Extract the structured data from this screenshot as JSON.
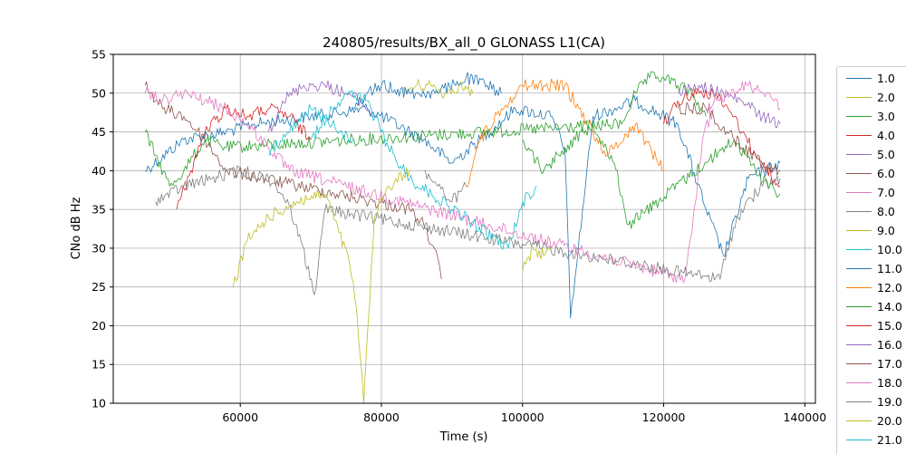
{
  "chart_data": {
    "type": "line",
    "title": "240805/results/BX_all_0 GLONASS L1(CA)",
    "xlabel": "Time (s)",
    "ylabel": "CNo dB Hz",
    "xlim": [
      42000,
      141500
    ],
    "ylim": [
      10,
      55
    ],
    "xticks": [
      60000,
      80000,
      100000,
      120000,
      140000
    ],
    "xtick_labels": [
      "60000",
      "80000",
      "100000",
      "120000",
      "140000"
    ],
    "yticks": [
      10,
      15,
      20,
      25,
      30,
      35,
      40,
      45,
      50,
      55
    ],
    "ytick_labels": [
      "10",
      "15",
      "20",
      "25",
      "30",
      "35",
      "40",
      "45",
      "50",
      "55"
    ],
    "grid": true,
    "legend_placement": "right-outside",
    "series": [
      {
        "name": "1.0",
        "color": "#1f77b4",
        "x": [
          46500,
          52000,
          58000,
          62000,
          70000,
          78000,
          86000,
          90000,
          94000,
          99000,
          104000,
          106000,
          106800,
          110000,
          116000,
          122000,
          126000,
          128500,
          132000,
          136500
        ],
        "y": [
          40,
          44,
          45,
          46,
          47,
          48,
          44,
          41,
          44,
          48,
          47,
          43,
          21,
          47,
          49,
          46,
          35,
          29,
          39,
          41
        ]
      },
      {
        "name": "2.0",
        "color": "#bcbd22",
        "x": [
          83000,
          85000,
          87000,
          89000,
          91000,
          93000
        ],
        "y": [
          50,
          51,
          51,
          50,
          51,
          50
        ]
      },
      {
        "name": "3.0",
        "color": "#2ca02c",
        "x": [
          46500,
          48000,
          50000,
          52000,
          55000,
          58000,
          114000,
          116000,
          118000,
          120000,
          122000,
          124000,
          126000
        ],
        "y": [
          45,
          42,
          38,
          40,
          44,
          43,
          46,
          50,
          52,
          52,
          51,
          50,
          47
        ]
      },
      {
        "name": "4.0",
        "color": "#d62728",
        "x": [
          51000,
          53000,
          55000,
          58000,
          61000,
          64000,
          67000,
          70000
        ],
        "y": [
          35,
          40,
          45,
          48,
          47,
          48,
          47,
          44
        ]
      },
      {
        "name": "5.0",
        "color": "#9467bd",
        "x": [
          64000,
          66000,
          69000,
          72000,
          75000,
          77000,
          79000
        ],
        "y": [
          45,
          49,
          51,
          51,
          50,
          49,
          47
        ]
      },
      {
        "name": "6.0",
        "color": "#8c564b",
        "x": [
          46500,
          49000,
          52000,
          55000,
          58000,
          84000,
          86000,
          87500,
          88500
        ],
        "y": [
          51,
          48,
          47,
          44,
          40,
          35,
          33,
          30,
          26
        ]
      },
      {
        "name": "7.0",
        "color": "#e377c2",
        "x": [
          46500,
          49000,
          52000,
          55000,
          58000,
          61000,
          64000,
          67000,
          123000,
          124000,
          125500,
          127000
        ],
        "y": [
          50,
          49,
          50,
          49,
          48,
          46,
          43,
          40,
          26,
          32,
          44,
          48
        ]
      },
      {
        "name": "8.0",
        "color": "#7f7f7f",
        "x": [
          48000,
          52000,
          56000,
          60000,
          64000,
          66000,
          68000,
          70500,
          72000,
          128000,
          129000,
          131000,
          134000,
          136500
        ],
        "y": [
          36,
          38,
          39,
          40,
          39,
          37,
          33,
          24,
          35,
          26,
          30,
          35,
          38,
          39
        ]
      },
      {
        "name": "9.0",
        "color": "#bcbd22",
        "x": [
          59000,
          61000,
          64000,
          68000,
          72000,
          74000,
          75500,
          76500,
          77500,
          79000,
          81000,
          84000
        ],
        "y": [
          25,
          31,
          34,
          36,
          37,
          32,
          28,
          22,
          10,
          34,
          38,
          40
        ]
      },
      {
        "name": "10.0",
        "color": "#17becf",
        "x": [
          70000,
          73000,
          75000,
          78000,
          81000,
          84000,
          98000,
          100000,
          102000
        ],
        "y": [
          44,
          48,
          50,
          49,
          43,
          39,
          30,
          36,
          38
        ]
      },
      {
        "name": "11.0",
        "color": "#1f77b4",
        "x": [
          76000,
          78000,
          80000,
          84000,
          88000,
          92000,
          95000,
          97000
        ],
        "y": [
          48,
          50,
          51,
          50,
          50,
          52,
          51,
          50
        ]
      },
      {
        "name": "12.0",
        "color": "#ff7f0e",
        "x": [
          92000,
          94000,
          97000,
          100000,
          103000,
          106000,
          108000,
          112000,
          116000,
          120000
        ],
        "y": [
          38,
          44,
          48,
          51,
          51,
          51,
          48,
          42,
          46,
          40
        ]
      },
      {
        "name": "14.0",
        "color": "#2ca02c",
        "x": [
          100000,
          103000,
          106000,
          110000,
          113000,
          115000,
          130000,
          133000,
          136500
        ],
        "y": [
          44,
          40,
          43,
          46,
          41,
          33,
          44,
          40,
          37
        ]
      },
      {
        "name": "15.0",
        "color": "#d62728",
        "x": [
          120000,
          122000,
          124000,
          127000,
          130000,
          133000,
          136500
        ],
        "y": [
          46,
          49,
          50,
          50,
          47,
          42,
          38
        ]
      },
      {
        "name": "16.0",
        "color": "#9467bd",
        "x": [
          122000,
          125000,
          128000,
          131000,
          134000,
          136500
        ],
        "y": [
          50,
          51,
          50,
          49,
          47,
          46
        ]
      },
      {
        "name": "17.0",
        "color": "#8c564b",
        "x": [
          122000,
          126000,
          130000,
          134000,
          136500
        ],
        "y": [
          48,
          48,
          44,
          41,
          40
        ]
      },
      {
        "name": "18.0",
        "color": "#e377c2",
        "x": [
          126000,
          129000,
          132000,
          135000,
          136500
        ],
        "y": [
          48,
          50,
          51,
          50,
          48
        ]
      },
      {
        "name": "19.0",
        "color": "#7f7f7f",
        "x": [
          86000,
          88000,
          90000,
          92000
        ],
        "y": [
          40,
          38,
          36,
          38
        ]
      },
      {
        "name": "20.0",
        "color": "#bcbd22",
        "x": [
          100000,
          101500,
          103000,
          104000
        ],
        "y": [
          27,
          30,
          29,
          30
        ]
      },
      {
        "name": "21.0",
        "color": "#17becf",
        "x": [
          64000,
          67000,
          70000,
          73000,
          76000
        ],
        "y": [
          42,
          45,
          48,
          46,
          44
        ]
      }
    ]
  }
}
